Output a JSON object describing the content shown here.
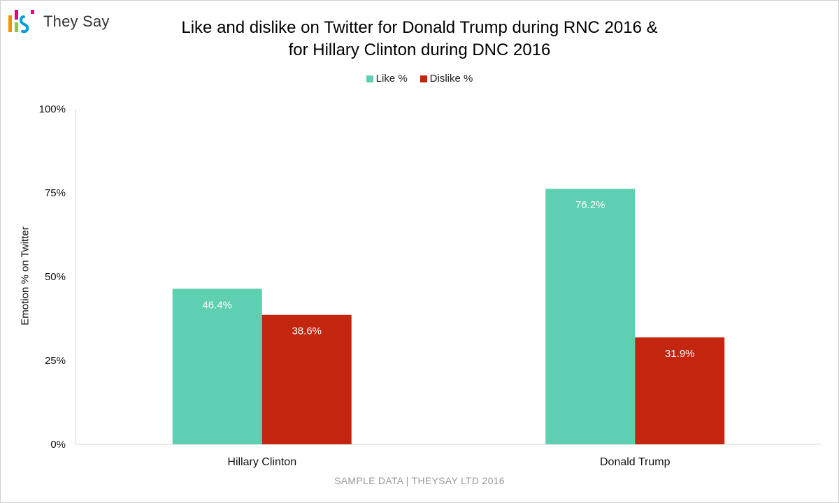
{
  "brand": {
    "name": "They Say"
  },
  "chart_data": {
    "type": "bar",
    "title": "Like and dislike on Twitter for Donald Trump during RNC 2016 & for Hillary Clinton during DNC 2016",
    "title_lines": [
      "Like and dislike on Twitter for Donald Trump during RNC 2016 &",
      "for Hillary Clinton during DNC 2016"
    ],
    "categories": [
      "Hillary Clinton",
      "Donald Trump"
    ],
    "series": [
      {
        "name": "Like %",
        "values": [
          46.4,
          76.2
        ],
        "labels": [
          "46.4%",
          "76.2%"
        ],
        "color": "#5ecfb1"
      },
      {
        "name": "Dislike %",
        "values": [
          38.6,
          31.9
        ],
        "labels": [
          "38.6%",
          "31.9%"
        ],
        "color": "#c4250f"
      }
    ],
    "ylabel": "Emotion % on Twitter",
    "xlabel": "",
    "ylim": [
      0,
      100
    ],
    "yticks": [
      0,
      25,
      50,
      75,
      100
    ],
    "ytick_labels": [
      "0%",
      "25%",
      "50%",
      "75%",
      "100%"
    ],
    "legend_position": "top-center",
    "grid": false
  },
  "footer": "SAMPLE DATA | THEYSAY LTD 2016"
}
